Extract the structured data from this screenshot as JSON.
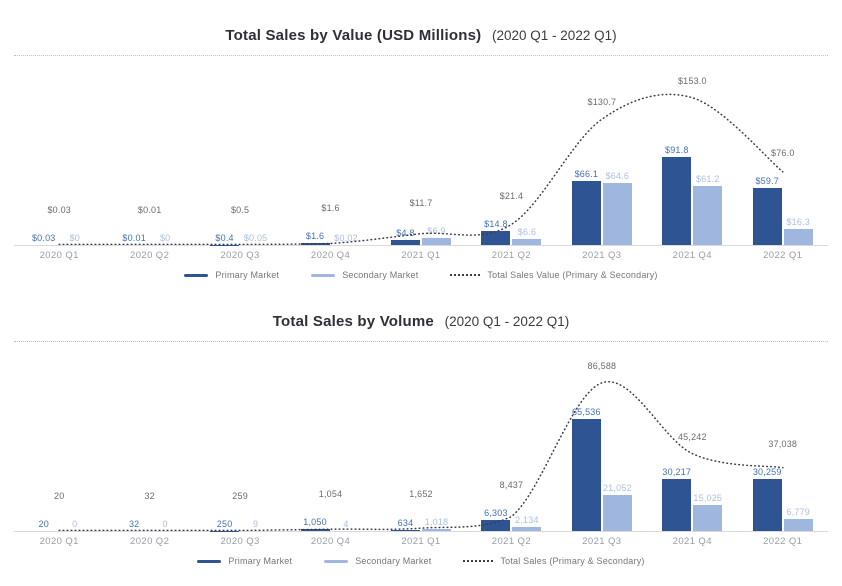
{
  "colors": {
    "primary_bar": "#2e5493",
    "secondary_bar": "#9fb6de",
    "primary_label": "#4470b3",
    "secondary_label": "#a9bee4",
    "total_label": "#6a6b71",
    "axis_label": "#989ca6",
    "title": "#2e2f38",
    "curve": "#3a3a44"
  },
  "chart_data": [
    {
      "type": "bar",
      "title": "Total Sales by Value (USD Millions)",
      "title_range": "(2020 Q1 - 2022 Q1)",
      "categories": [
        "2020 Q1",
        "2020 Q2",
        "2020 Q3",
        "2020 Q4",
        "2021 Q1",
        "2021 Q2",
        "2021 Q3",
        "2021 Q4",
        "2022 Q1"
      ],
      "series": [
        {
          "name": "Primary Market",
          "values": [
            0.03,
            0.01,
            0.4,
            1.6,
            4.8,
            14.8,
            66.1,
            91.8,
            59.7
          ],
          "labels": [
            "$0.03",
            "$0.01",
            "$0.4",
            "$1.6",
            "$4.8",
            "$14.8",
            "$66.1",
            "$91.8",
            "$59.7"
          ]
        },
        {
          "name": "Secondary Market",
          "values": [
            0,
            0,
            0.05,
            0.02,
            6.9,
            6.6,
            64.6,
            61.2,
            16.3
          ],
          "labels": [
            "$0",
            "$0",
            "$0.05",
            "$0.02",
            "$6.9",
            "$6.6",
            "$64.6",
            "$61.2",
            "$16.3"
          ]
        }
      ],
      "line": {
        "name": "Total Sales Value (Primary & Secondary)",
        "values": [
          0.03,
          0.01,
          0.5,
          1.6,
          11.7,
          21.4,
          130.7,
          153.0,
          76.0
        ],
        "labels": [
          "$0.03",
          "$0.01",
          "$0.5",
          "$1.6",
          "$11.7",
          "$21.4",
          "$130.7",
          "$153.0",
          "$76.0"
        ]
      },
      "legend": [
        "Primary Market",
        "Secondary Market",
        "Total Sales Value (Primary & Secondary)"
      ],
      "ylim": [
        0,
        160
      ],
      "grid": false,
      "legend_position": "bottom-center"
    },
    {
      "type": "bar",
      "title": "Total Sales by Volume",
      "title_range": "(2020 Q1 - 2022 Q1)",
      "categories": [
        "2020 Q1",
        "2020 Q2",
        "2020 Q3",
        "2020 Q4",
        "2021 Q1",
        "2021 Q2",
        "2021 Q3",
        "2021 Q4",
        "2022 Q1"
      ],
      "series": [
        {
          "name": "Primary Market",
          "values": [
            20,
            32,
            250,
            1050,
            634,
            6303,
            65536,
            30217,
            30259
          ],
          "labels": [
            "20",
            "32",
            "250",
            "1,050",
            "634",
            "6,303",
            "65,536",
            "30,217",
            "30,259"
          ]
        },
        {
          "name": "Secondary Market",
          "values": [
            0,
            0,
            9,
            4,
            1018,
            2134,
            21052,
            15025,
            6779
          ],
          "labels": [
            "0",
            "0",
            "9",
            "4",
            "1,018",
            "2,134",
            "21,052",
            "15,025",
            "6,779"
          ]
        }
      ],
      "line": {
        "name": "Total Sales (Primary & Secondary)",
        "values": [
          20,
          32,
          259,
          1054,
          1652,
          8437,
          86588,
          45242,
          37038
        ],
        "labels": [
          "20",
          "32",
          "259",
          "1,054",
          "1,652",
          "8,437",
          "86,588",
          "45,242",
          "37,038"
        ]
      },
      "legend": [
        "Primary Market",
        "Secondary Market",
        "Total Sales (Primary & Secondary)"
      ],
      "ylim": [
        0,
        90000
      ],
      "grid": false,
      "legend_position": "bottom-center"
    }
  ]
}
